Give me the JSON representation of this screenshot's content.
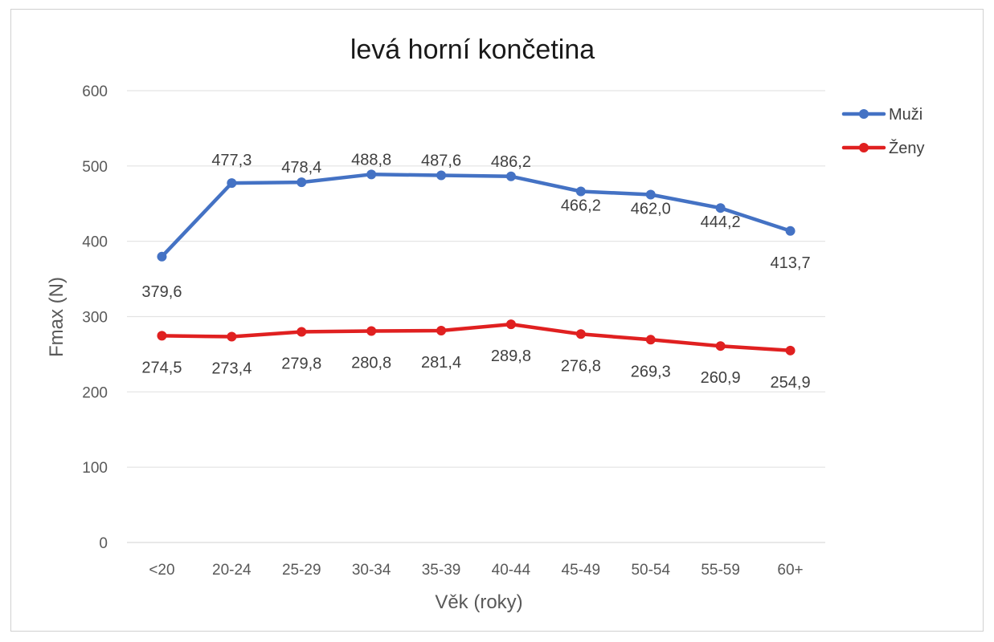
{
  "chart_data": {
    "type": "line",
    "title": "levá horní končetina",
    "xlabel": "Věk (roky)",
    "ylabel": "Fmax (N)",
    "categories": [
      "<20",
      "20-24",
      "25-29",
      "30-34",
      "35-39",
      "40-44",
      "45-49",
      "50-54",
      "55-59",
      "60+"
    ],
    "ylim": [
      0,
      600
    ],
    "yticks": [
      "0",
      "100",
      "200",
      "300",
      "400",
      "500",
      "600"
    ],
    "grid": true,
    "legend_position": "right",
    "series": [
      {
        "name": "Muži",
        "color": "#4472C4",
        "values": [
          379.6,
          477.3,
          478.4,
          488.8,
          487.6,
          486.2,
          466.2,
          462.0,
          444.2,
          413.7
        ],
        "labels": [
          "379,6",
          "477,3",
          "478,4",
          "488,8",
          "487,6",
          "486,2",
          "466,2",
          "462,0",
          "444,2",
          "413,7"
        ]
      },
      {
        "name": "Ženy",
        "color": "#E02020",
        "values": [
          274.5,
          273.4,
          279.8,
          280.8,
          281.4,
          289.8,
          276.8,
          269.3,
          260.9,
          254.9
        ],
        "labels": [
          "274,5",
          "273,4",
          "279,8",
          "280,8",
          "281,4",
          "289,8",
          "276,8",
          "269,3",
          "260,9",
          "254,9"
        ]
      }
    ]
  }
}
